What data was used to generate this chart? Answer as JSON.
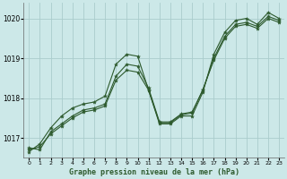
{
  "title": "Graphe pression niveau de la mer (hPa)",
  "background_color": "#cce8e8",
  "grid_color": "#aacccc",
  "line_color": "#2d5a2d",
  "xlim": [
    -0.5,
    23.5
  ],
  "ylim": [
    1016.5,
    1020.4
  ],
  "yticks": [
    1017,
    1018,
    1019,
    1020
  ],
  "xticks": [
    0,
    1,
    2,
    3,
    4,
    5,
    6,
    7,
    8,
    9,
    10,
    11,
    12,
    13,
    14,
    15,
    16,
    17,
    18,
    19,
    20,
    21,
    22,
    23
  ],
  "series": [
    [
      1016.65,
      1016.85,
      1017.25,
      1017.55,
      1017.75,
      1017.85,
      1017.9,
      1018.05,
      1018.85,
      1019.1,
      1019.05,
      1018.2,
      1017.35,
      1017.35,
      1017.55,
      1017.55,
      1018.15,
      1019.1,
      1019.65,
      1019.95,
      1020.0,
      1019.85,
      1020.15,
      1020.0
    ],
    [
      1016.75,
      1016.7,
      1017.15,
      1017.35,
      1017.55,
      1017.7,
      1017.75,
      1017.85,
      1018.55,
      1018.85,
      1018.8,
      1018.25,
      1017.4,
      1017.4,
      1017.6,
      1017.65,
      1018.2,
      1019.0,
      1019.55,
      1019.85,
      1019.9,
      1019.8,
      1020.05,
      1019.95
    ],
    [
      1016.7,
      1016.78,
      1017.1,
      1017.3,
      1017.5,
      1017.65,
      1017.7,
      1017.8,
      1018.45,
      1018.7,
      1018.65,
      1018.2,
      1017.38,
      1017.38,
      1017.58,
      1017.62,
      1018.22,
      1018.95,
      1019.5,
      1019.8,
      1019.85,
      1019.75,
      1020.0,
      1019.9
    ]
  ]
}
